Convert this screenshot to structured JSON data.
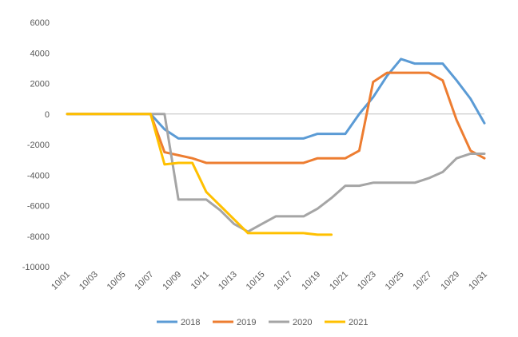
{
  "chart_data": {
    "type": "line",
    "title": "",
    "xlabel": "",
    "ylabel": "",
    "ylim": [
      -10000,
      6000
    ],
    "yticks": [
      6000,
      4000,
      2000,
      0,
      -2000,
      -4000,
      -6000,
      -8000,
      -10000
    ],
    "ytick_labels": [
      "6000",
      "4000",
      "2000",
      "0",
      "-2000",
      "-4000",
      "-6000",
      "-8000",
      "-10000"
    ],
    "x": [
      "10/01",
      "10/02",
      "10/03",
      "10/04",
      "10/05",
      "10/06",
      "10/07",
      "10/08",
      "10/09",
      "10/10",
      "10/11",
      "10/12",
      "10/13",
      "10/14",
      "10/15",
      "10/16",
      "10/17",
      "10/18",
      "10/19",
      "10/20",
      "10/21",
      "10/22",
      "10/23",
      "10/24",
      "10/25",
      "10/26",
      "10/27",
      "10/28",
      "10/29",
      "10/30",
      "10/31"
    ],
    "xtick_labels": [
      "10/01",
      "10/03",
      "10/05",
      "10/07",
      "10/09",
      "10/11",
      "10/13",
      "10/15",
      "10/17",
      "10/19",
      "10/21",
      "10/23",
      "10/25",
      "10/27",
      "10/29",
      "10/31"
    ],
    "grid": false,
    "legend_position": "bottom",
    "series": [
      {
        "name": "2018",
        "color": "#5B9BD5",
        "values": [
          0,
          0,
          0,
          0,
          0,
          0,
          0,
          -1000,
          -1600,
          -1600,
          -1600,
          -1600,
          -1600,
          -1600,
          -1600,
          -1600,
          -1600,
          -1600,
          -1300,
          -1300,
          -1300,
          0,
          1100,
          2500,
          3600,
          3300,
          3300,
          3300,
          2200,
          1000,
          -600
        ]
      },
      {
        "name": "2019",
        "color": "#ED7D31",
        "values": [
          0,
          0,
          0,
          0,
          0,
          0,
          0,
          -2500,
          -2700,
          -2900,
          -3200,
          -3200,
          -3200,
          -3200,
          -3200,
          -3200,
          -3200,
          -3200,
          -2900,
          -2900,
          -2900,
          -2400,
          2100,
          2700,
          2700,
          2700,
          2700,
          2200,
          -400,
          -2400,
          -2900
        ]
      },
      {
        "name": "2020",
        "color": "#A5A5A5",
        "values": [
          0,
          0,
          0,
          0,
          0,
          0,
          0,
          0,
          -5600,
          -5600,
          -5600,
          -6300,
          -7200,
          -7700,
          -7200,
          -6700,
          -6700,
          -6700,
          -6200,
          -5500,
          -4700,
          -4700,
          -4500,
          -4500,
          -4500,
          -4500,
          -4200,
          -3800,
          -2900,
          -2600,
          -2600
        ]
      },
      {
        "name": "2021",
        "color": "#FFC000",
        "values": [
          0,
          0,
          0,
          0,
          0,
          0,
          0,
          -3300,
          -3200,
          -3200,
          -5100,
          -6000,
          -6900,
          -7800,
          -7800,
          -7800,
          -7800,
          -7800,
          -7900,
          -7900,
          null,
          null,
          null,
          null,
          null,
          null,
          null,
          null,
          null,
          null,
          null
        ]
      }
    ]
  }
}
